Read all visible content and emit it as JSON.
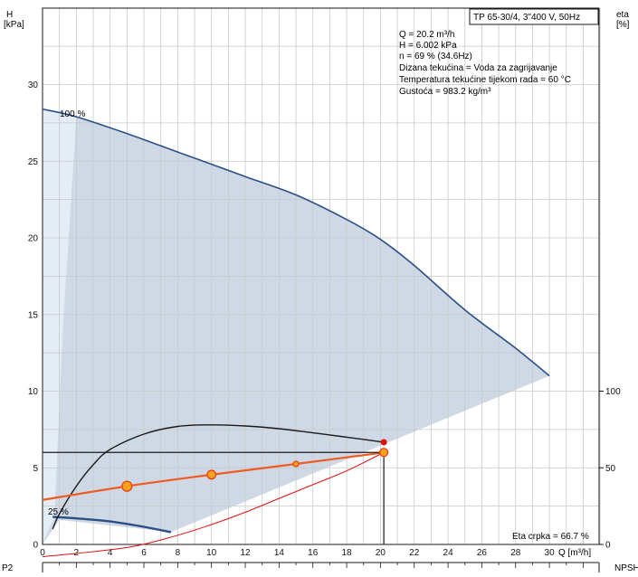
{
  "chart_data": {
    "type": "line",
    "title": "TP 65-30/4, 3\"400 V, 50Hz",
    "xlabel": "Q [m³/h]",
    "ylabel_left_top": "H",
    "ylabel_left_unit": "[kPa]",
    "ylabel_right_top": "eta",
    "ylabel_right_unit": "[%]",
    "bottom_left_label": "P2",
    "bottom_right_label": "NPSH",
    "xlim": [
      0,
      33
    ],
    "ylim": [
      0,
      35
    ],
    "x_ticks": [
      0,
      2,
      4,
      6,
      8,
      10,
      12,
      14,
      16,
      18,
      20,
      22,
      24,
      26,
      28,
      30
    ],
    "y_ticks": [
      0,
      5,
      10,
      15,
      20,
      25,
      30
    ],
    "eta_axis": {
      "ticks": [
        0,
        50,
        100
      ],
      "range_eta": [
        0,
        100
      ],
      "maps_to_h": [
        0,
        10
      ]
    },
    "grid": true,
    "info_lines": [
      "Q = 20.2 m³/h",
      "H = 6.002 kPa",
      "n = 69 % (34.6Hz)",
      "Dizana tekućina = Voda za zagrijavanje",
      "Temperatura tekućine tijekom rada = 60 °C",
      "Gustoća = 983.2 kg/m³"
    ],
    "labels": {
      "curve_100": "100 %",
      "curve_25": "25 %",
      "eta_pump": "Eta crpka = 66.7 %"
    },
    "colors": {
      "region_fill": "#cfd9e6",
      "region_light": "#e4edf6",
      "h_curve": "#2a4f86",
      "eta_curve": "#1a1a1a",
      "system_curve": "#f05a23",
      "marker_fill": "#f7a21b",
      "marker_stroke": "#e8401a",
      "red_curve": "#e01010",
      "grid": "#c8c8c8"
    },
    "series": [
      {
        "kind": "h",
        "x": [
          0,
          2,
          5,
          8,
          10,
          12,
          15,
          18,
          20,
          22,
          25,
          28,
          30
        ],
        "y": [
          28.4,
          27.9,
          26.8,
          25.6,
          24.8,
          24.0,
          22.8,
          21.2,
          19.9,
          18.2,
          15.3,
          12.8,
          11.0
        ]
      },
      {
        "kind": "h_min",
        "x": [
          0.6,
          2,
          4,
          6,
          7.6
        ],
        "y": [
          1.8,
          1.7,
          1.5,
          1.15,
          0.8
        ]
      },
      {
        "kind": "eta",
        "x": [
          0.6,
          1,
          2,
          3,
          4,
          6,
          8,
          10,
          12,
          14,
          16,
          18,
          20.2
        ],
        "eta": [
          10,
          20,
          38,
          52,
          62,
          72,
          77,
          78,
          77.3,
          75.5,
          72.8,
          70,
          66.7
        ]
      },
      {
        "kind": "system",
        "x": [
          0,
          5,
          10,
          15,
          20.2
        ],
        "y": [
          2.9,
          3.8,
          4.55,
          5.25,
          6.002
        ]
      },
      {
        "kind": "red",
        "x": [
          0,
          5,
          8,
          10,
          12,
          14,
          16,
          18,
          20.2
        ],
        "y": [
          -0.8,
          -0.2,
          0.6,
          1.3,
          2.1,
          3.0,
          3.9,
          4.8,
          6.0
        ]
      }
    ],
    "points": [
      {
        "kind": "big",
        "x": 5,
        "y": 3.8
      },
      {
        "kind": "mid",
        "x": 10,
        "y": 4.55
      },
      {
        "kind": "small",
        "x": 15,
        "y": 5.25
      },
      {
        "kind": "duty",
        "x": 20.2,
        "y": 6.002
      },
      {
        "kind": "eta_duty",
        "x": 20.2,
        "eta": 66.7
      }
    ],
    "duty_point": {
      "x": 20.2,
      "y": 6.002
    }
  }
}
